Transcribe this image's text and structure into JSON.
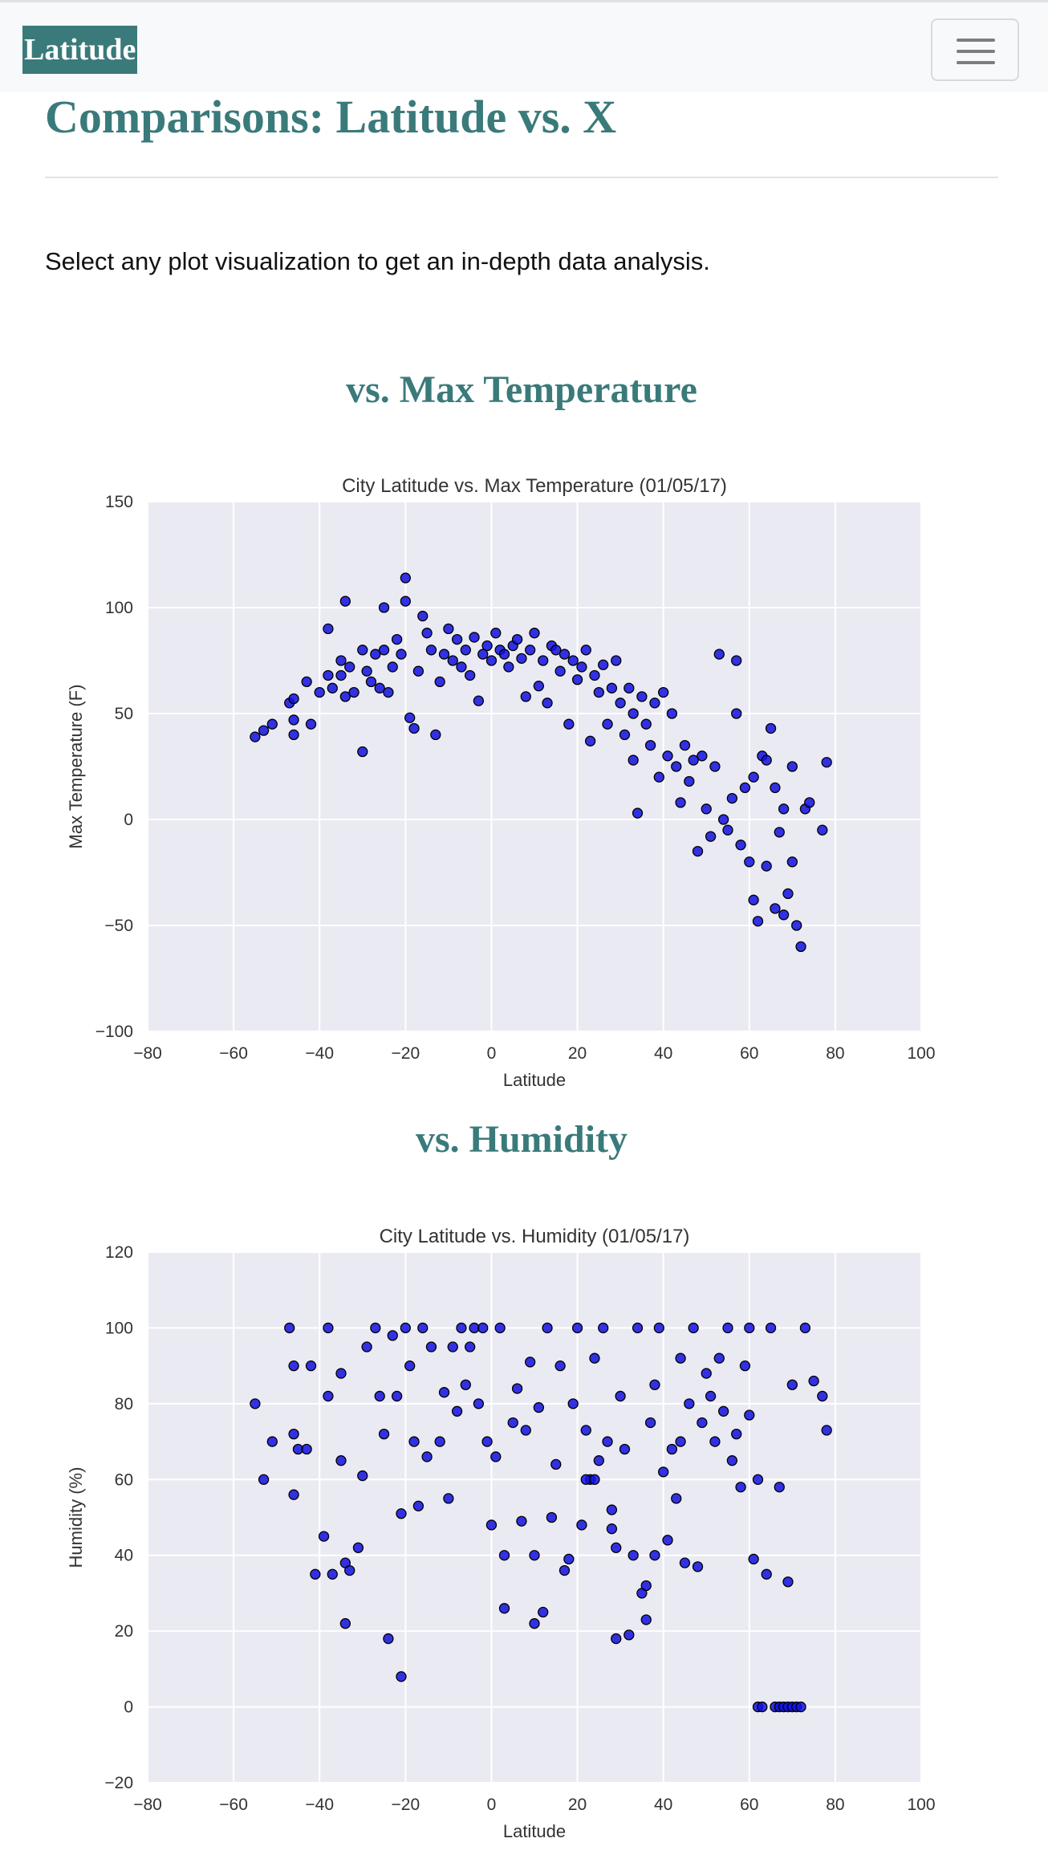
{
  "navbar": {
    "brand": "Latitude",
    "toggle_icon": "hamburger-menu-icon"
  },
  "page": {
    "title": "Comparisons: Latitude vs. X",
    "intro": "Select any plot visualization to get an in-depth data analysis."
  },
  "sections": [
    {
      "title": "vs. Max Temperature"
    },
    {
      "title": "vs. Humidity"
    }
  ],
  "colors": {
    "accent": "#3a7a7a",
    "plot_background": "#eaeaf2",
    "marker_fill": "#1010e0",
    "marker_edge": "#000000"
  },
  "chart_data": [
    {
      "type": "scatter",
      "title": "City Latitude vs. Max Temperature (01/05/17)",
      "xlabel": "Latitude",
      "ylabel": "Max Temperature (F)",
      "xlim": [
        -80,
        100
      ],
      "ylim": [
        -100,
        150
      ],
      "xticks": [
        -80,
        -60,
        -40,
        -20,
        0,
        20,
        40,
        60,
        80,
        100
      ],
      "yticks": [
        -100,
        -50,
        0,
        50,
        100,
        150
      ],
      "grid": true,
      "points": [
        [
          -55,
          39
        ],
        [
          -53,
          42
        ],
        [
          -51,
          45
        ],
        [
          -47,
          55
        ],
        [
          -46,
          57
        ],
        [
          -46,
          47
        ],
        [
          -46,
          40
        ],
        [
          -43,
          65
        ],
        [
          -42,
          45
        ],
        [
          -40,
          60
        ],
        [
          -38,
          90
        ],
        [
          -38,
          68
        ],
        [
          -37,
          62
        ],
        [
          -35,
          75
        ],
        [
          -35,
          68
        ],
        [
          -34,
          103
        ],
        [
          -34,
          58
        ],
        [
          -33,
          72
        ],
        [
          -32,
          60
        ],
        [
          -30,
          32
        ],
        [
          -30,
          80
        ],
        [
          -29,
          70
        ],
        [
          -28,
          65
        ],
        [
          -27,
          78
        ],
        [
          -26,
          62
        ],
        [
          -25,
          100
        ],
        [
          -25,
          80
        ],
        [
          -24,
          60
        ],
        [
          -23,
          72
        ],
        [
          -22,
          85
        ],
        [
          -21,
          78
        ],
        [
          -20,
          114
        ],
        [
          -20,
          103
        ],
        [
          -19,
          48
        ],
        [
          -18,
          43
        ],
        [
          -17,
          70
        ],
        [
          -16,
          96
        ],
        [
          -15,
          88
        ],
        [
          -14,
          80
        ],
        [
          -13,
          40
        ],
        [
          -12,
          65
        ],
        [
          -11,
          78
        ],
        [
          -10,
          90
        ],
        [
          -9,
          75
        ],
        [
          -8,
          85
        ],
        [
          -7,
          72
        ],
        [
          -6,
          80
        ],
        [
          -5,
          68
        ],
        [
          -4,
          86
        ],
        [
          -3,
          56
        ],
        [
          -2,
          78
        ],
        [
          -1,
          82
        ],
        [
          0,
          75
        ],
        [
          1,
          88
        ],
        [
          2,
          80
        ],
        [
          3,
          78
        ],
        [
          4,
          72
        ],
        [
          5,
          82
        ],
        [
          6,
          85
        ],
        [
          7,
          76
        ],
        [
          8,
          58
        ],
        [
          9,
          80
        ],
        [
          10,
          88
        ],
        [
          11,
          63
        ],
        [
          12,
          75
        ],
        [
          13,
          55
        ],
        [
          14,
          82
        ],
        [
          15,
          80
        ],
        [
          16,
          70
        ],
        [
          17,
          78
        ],
        [
          18,
          45
        ],
        [
          19,
          75
        ],
        [
          20,
          66
        ],
        [
          21,
          72
        ],
        [
          22,
          80
        ],
        [
          23,
          37
        ],
        [
          24,
          68
        ],
        [
          25,
          60
        ],
        [
          26,
          73
        ],
        [
          27,
          45
        ],
        [
          28,
          62
        ],
        [
          29,
          75
        ],
        [
          30,
          55
        ],
        [
          31,
          40
        ],
        [
          32,
          62
        ],
        [
          33,
          50
        ],
        [
          33,
          28
        ],
        [
          34,
          3
        ],
        [
          35,
          58
        ],
        [
          36,
          45
        ],
        [
          37,
          35
        ],
        [
          38,
          55
        ],
        [
          39,
          20
        ],
        [
          40,
          60
        ],
        [
          41,
          30
        ],
        [
          42,
          50
        ],
        [
          43,
          25
        ],
        [
          44,
          8
        ],
        [
          45,
          35
        ],
        [
          46,
          18
        ],
        [
          47,
          28
        ],
        [
          48,
          -15
        ],
        [
          49,
          30
        ],
        [
          50,
          5
        ],
        [
          51,
          -8
        ],
        [
          52,
          25
        ],
        [
          53,
          78
        ],
        [
          54,
          0
        ],
        [
          55,
          -5
        ],
        [
          56,
          10
        ],
        [
          57,
          50
        ],
        [
          57,
          75
        ],
        [
          58,
          -12
        ],
        [
          59,
          15
        ],
        [
          60,
          -20
        ],
        [
          61,
          -38
        ],
        [
          62,
          -48
        ],
        [
          63,
          30
        ],
        [
          64,
          -22
        ],
        [
          65,
          43
        ],
        [
          66,
          -42
        ],
        [
          67,
          -6
        ],
        [
          68,
          -45
        ],
        [
          69,
          -35
        ],
        [
          70,
          -20
        ],
        [
          71,
          -50
        ],
        [
          72,
          -60
        ],
        [
          73,
          5
        ],
        [
          74,
          8
        ],
        [
          77,
          -5
        ],
        [
          78,
          27
        ],
        [
          61,
          20
        ],
        [
          64,
          28
        ],
        [
          66,
          15
        ],
        [
          68,
          5
        ],
        [
          70,
          25
        ]
      ]
    },
    {
      "type": "scatter",
      "title": "City Latitude vs. Humidity (01/05/17)",
      "xlabel": "Latitude",
      "ylabel": "Humidity (%)",
      "xlim": [
        -80,
        100
      ],
      "ylim": [
        -20,
        120
      ],
      "xticks": [
        -80,
        -60,
        -40,
        -20,
        0,
        20,
        40,
        60,
        80,
        100
      ],
      "yticks": [
        -20,
        0,
        20,
        40,
        60,
        80,
        100,
        120
      ],
      "grid": true,
      "points": [
        [
          -55,
          80
        ],
        [
          -53,
          60
        ],
        [
          -51,
          70
        ],
        [
          -47,
          100
        ],
        [
          -46,
          90
        ],
        [
          -46,
          72
        ],
        [
          -45,
          68
        ],
        [
          -46,
          56
        ],
        [
          -43,
          68
        ],
        [
          -42,
          90
        ],
        [
          -41,
          35
        ],
        [
          -39,
          45
        ],
        [
          -38,
          100
        ],
        [
          -38,
          82
        ],
        [
          -37,
          35
        ],
        [
          -35,
          88
        ],
        [
          -35,
          65
        ],
        [
          -34,
          38
        ],
        [
          -34,
          22
        ],
        [
          -33,
          36
        ],
        [
          -31,
          42
        ],
        [
          -30,
          61
        ],
        [
          -29,
          95
        ],
        [
          -27,
          100
        ],
        [
          -26,
          82
        ],
        [
          -25,
          72
        ],
        [
          -24,
          18
        ],
        [
          -23,
          98
        ],
        [
          -22,
          82
        ],
        [
          -21,
          51
        ],
        [
          -21,
          8
        ],
        [
          -20,
          100
        ],
        [
          -19,
          90
        ],
        [
          -18,
          70
        ],
        [
          -17,
          53
        ],
        [
          -16,
          100
        ],
        [
          -15,
          66
        ],
        [
          -14,
          95
        ],
        [
          -12,
          70
        ],
        [
          -11,
          83
        ],
        [
          -10,
          55
        ],
        [
          -9,
          95
        ],
        [
          -8,
          78
        ],
        [
          -7,
          100
        ],
        [
          -6,
          85
        ],
        [
          -5,
          95
        ],
        [
          -4,
          100
        ],
        [
          -3,
          80
        ],
        [
          -2,
          100
        ],
        [
          -1,
          70
        ],
        [
          0,
          48
        ],
        [
          1,
          66
        ],
        [
          2,
          100
        ],
        [
          3,
          26
        ],
        [
          3,
          40
        ],
        [
          5,
          75
        ],
        [
          6,
          84
        ],
        [
          7,
          49
        ],
        [
          8,
          73
        ],
        [
          9,
          91
        ],
        [
          10,
          22
        ],
        [
          10,
          40
        ],
        [
          11,
          79
        ],
        [
          12,
          25
        ],
        [
          13,
          100
        ],
        [
          14,
          50
        ],
        [
          15,
          64
        ],
        [
          16,
          90
        ],
        [
          17,
          36
        ],
        [
          18,
          39
        ],
        [
          19,
          80
        ],
        [
          20,
          100
        ],
        [
          21,
          48
        ],
        [
          22,
          73
        ],
        [
          23,
          60
        ],
        [
          24,
          92
        ],
        [
          25,
          65
        ],
        [
          26,
          100
        ],
        [
          27,
          70
        ],
        [
          28,
          52
        ],
        [
          29,
          18
        ],
        [
          29,
          42
        ],
        [
          30,
          82
        ],
        [
          31,
          68
        ],
        [
          32,
          19
        ],
        [
          33,
          40
        ],
        [
          34,
          100
        ],
        [
          35,
          30
        ],
        [
          36,
          23
        ],
        [
          37,
          75
        ],
        [
          38,
          85
        ],
        [
          39,
          100
        ],
        [
          40,
          62
        ],
        [
          41,
          44
        ],
        [
          42,
          68
        ],
        [
          43,
          55
        ],
        [
          44,
          92
        ],
        [
          45,
          38
        ],
        [
          46,
          80
        ],
        [
          47,
          100
        ],
        [
          48,
          37
        ],
        [
          49,
          75
        ],
        [
          50,
          88
        ],
        [
          51,
          82
        ],
        [
          52,
          70
        ],
        [
          53,
          92
        ],
        [
          54,
          78
        ],
        [
          55,
          100
        ],
        [
          56,
          65
        ],
        [
          57,
          72
        ],
        [
          58,
          58
        ],
        [
          59,
          90
        ],
        [
          60,
          100
        ],
        [
          61,
          39
        ],
        [
          62,
          60
        ],
        [
          62,
          0
        ],
        [
          63,
          0
        ],
        [
          64,
          35
        ],
        [
          65,
          100
        ],
        [
          66,
          0
        ],
        [
          67,
          0
        ],
        [
          67,
          58
        ],
        [
          68,
          0
        ],
        [
          69,
          33
        ],
        [
          69,
          0
        ],
        [
          70,
          0
        ],
        [
          70,
          85
        ],
        [
          71,
          0
        ],
        [
          72,
          0
        ],
        [
          73,
          100
        ],
        [
          75,
          86
        ],
        [
          77,
          82
        ],
        [
          78,
          73
        ],
        [
          22,
          60
        ],
        [
          24,
          60
        ],
        [
          28,
          47
        ],
        [
          36,
          32
        ],
        [
          38,
          40
        ],
        [
          44,
          70
        ],
        [
          60,
          77
        ]
      ]
    }
  ]
}
